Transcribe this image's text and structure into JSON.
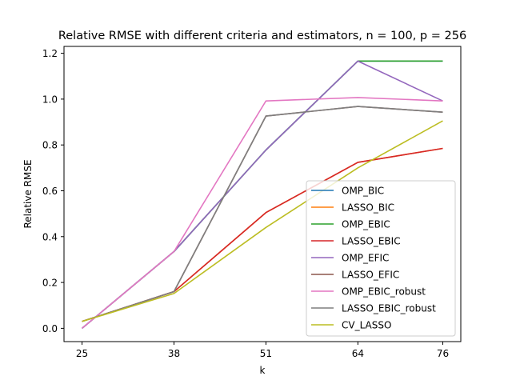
{
  "chart_data": {
    "type": "line",
    "title": "Relative RMSE with different criteria and estimators, n = 100, p = 256",
    "xlabel": "k",
    "ylabel": "Relative RMSE",
    "x": [
      25,
      38,
      51,
      64,
      76
    ],
    "x_tick_labels": [
      "25",
      "38",
      "51",
      "64",
      "76"
    ],
    "ylim": [
      -0.058,
      1.23
    ],
    "y_ticks": [
      0.0,
      0.2,
      0.4,
      0.6,
      0.8,
      1.0,
      1.2
    ],
    "y_tick_labels": [
      "0.0",
      "0.2",
      "0.4",
      "0.6",
      "0.8",
      "1.0",
      "1.2"
    ],
    "grid": false,
    "legend_position": "lower-right",
    "series": [
      {
        "name": "OMP_BIC",
        "color": "#1f77b4",
        "values": [
          0.0,
          0.335,
          0.778,
          1.166,
          1.166
        ]
      },
      {
        "name": "LASSO_BIC",
        "color": "#ff7f0e",
        "values": [
          0.03,
          0.16,
          0.505,
          0.724,
          0.785
        ]
      },
      {
        "name": "OMP_EBIC",
        "color": "#2ca02c",
        "values": [
          0.0,
          0.335,
          0.778,
          1.166,
          1.166
        ]
      },
      {
        "name": "LASSO_EBIC",
        "color": "#d62728",
        "values": [
          0.03,
          0.16,
          0.505,
          0.724,
          0.785
        ]
      },
      {
        "name": "OMP_EFIC",
        "color": "#9467bd",
        "values": [
          0.0,
          0.335,
          0.778,
          1.166,
          0.992
        ]
      },
      {
        "name": "LASSO_EFIC",
        "color": "#8c564b",
        "values": [
          0.03,
          0.16,
          0.926,
          0.968,
          0.943
        ]
      },
      {
        "name": "OMP_EBIC_robust",
        "color": "#e377c2",
        "values": [
          0.0,
          0.335,
          0.992,
          1.007,
          0.992
        ]
      },
      {
        "name": "LASSO_EBIC_robust",
        "color": "#7f7f7f",
        "values": [
          0.03,
          0.16,
          0.926,
          0.968,
          0.943
        ]
      },
      {
        "name": "CV_LASSO",
        "color": "#bcbd22",
        "values": [
          0.03,
          0.152,
          0.44,
          0.7,
          0.905
        ]
      }
    ]
  }
}
